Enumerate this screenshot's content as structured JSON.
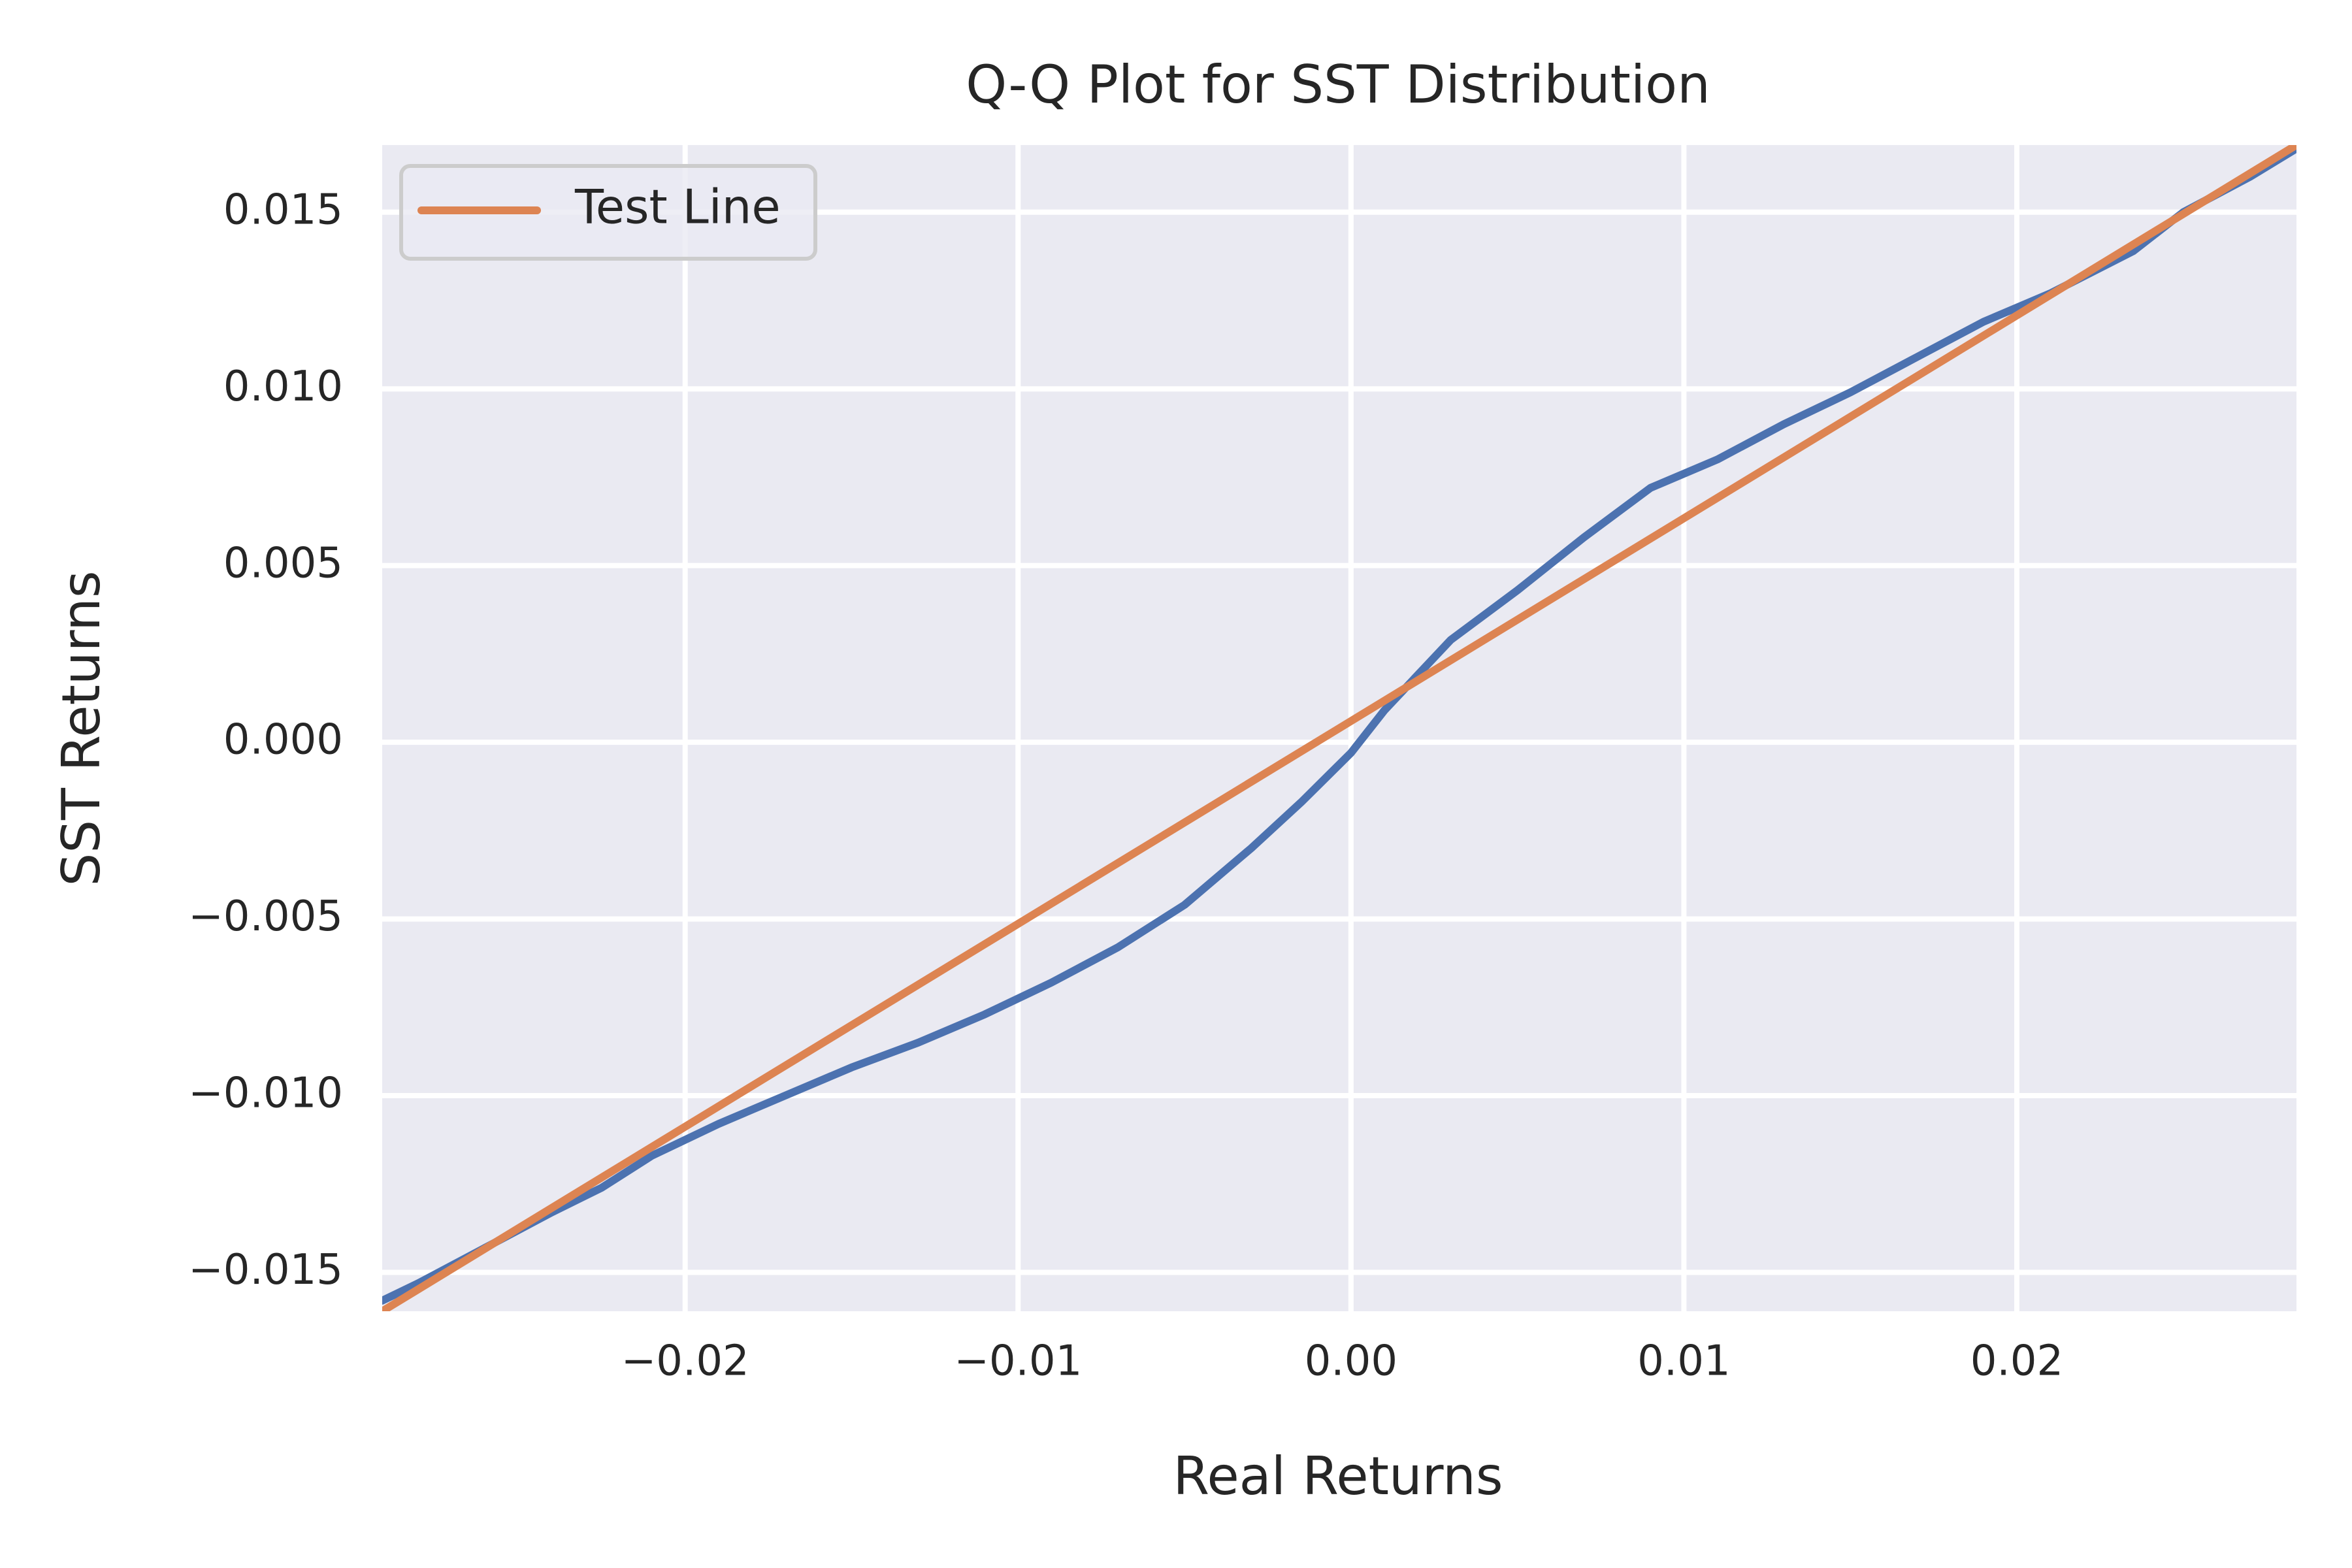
{
  "chart_data": {
    "type": "line",
    "title": "Q-Q Plot for SST Distribution",
    "xlabel": "Real Returns",
    "ylabel": "SST Returns",
    "xlim": [
      -0.0291,
      0.0284
    ],
    "ylim": [
      -0.0161,
      0.0169
    ],
    "grid": true,
    "background": "#eaeaf2",
    "x_ticks": [
      {
        "value": -0.02,
        "label": "−0.02"
      },
      {
        "value": -0.01,
        "label": "−0.01"
      },
      {
        "value": 0.0,
        "label": "0.00"
      },
      {
        "value": 0.01,
        "label": "0.01"
      },
      {
        "value": 0.02,
        "label": "0.02"
      }
    ],
    "y_ticks": [
      {
        "value": -0.015,
        "label": "−0.015"
      },
      {
        "value": -0.01,
        "label": "−0.010"
      },
      {
        "value": -0.005,
        "label": "−0.005"
      },
      {
        "value": 0.0,
        "label": "0.000"
      },
      {
        "value": 0.005,
        "label": "0.005"
      },
      {
        "value": 0.01,
        "label": "0.010"
      },
      {
        "value": 0.015,
        "label": "0.015"
      }
    ],
    "legend": {
      "position": "top-left",
      "entries": [
        "Test Line"
      ]
    },
    "series": [
      {
        "color": "#4c72b0",
        "x": [
          -0.0291,
          -0.028,
          -0.026,
          -0.024,
          -0.0225,
          -0.021,
          -0.019,
          -0.017,
          -0.015,
          -0.013,
          -0.011,
          -0.009,
          -0.007,
          -0.005,
          -0.003,
          -0.0015,
          0.0,
          0.001,
          0.002,
          0.003,
          0.005,
          0.007,
          0.009,
          0.011,
          0.013,
          0.015,
          0.017,
          0.019,
          0.021,
          0.0235,
          0.025,
          0.027,
          0.0284
        ],
        "y": [
          -0.0158,
          -0.0153,
          -0.0143,
          -0.0133,
          -0.0126,
          -0.0117,
          -0.0108,
          -0.01,
          -0.0092,
          -0.0085,
          -0.0077,
          -0.0068,
          -0.0058,
          -0.0046,
          -0.003,
          -0.0017,
          -0.0003,
          0.0009,
          0.0019,
          0.0029,
          0.0043,
          0.0058,
          0.0072,
          0.008,
          0.009,
          0.0099,
          0.0109,
          0.0119,
          0.0127,
          0.0139,
          0.015,
          0.016,
          0.0168
        ]
      },
      {
        "name": "Test Line",
        "color": "#dd8452",
        "x": [
          -0.0291,
          0.0284
        ],
        "y": [
          -0.0161,
          0.0169
        ]
      }
    ]
  }
}
